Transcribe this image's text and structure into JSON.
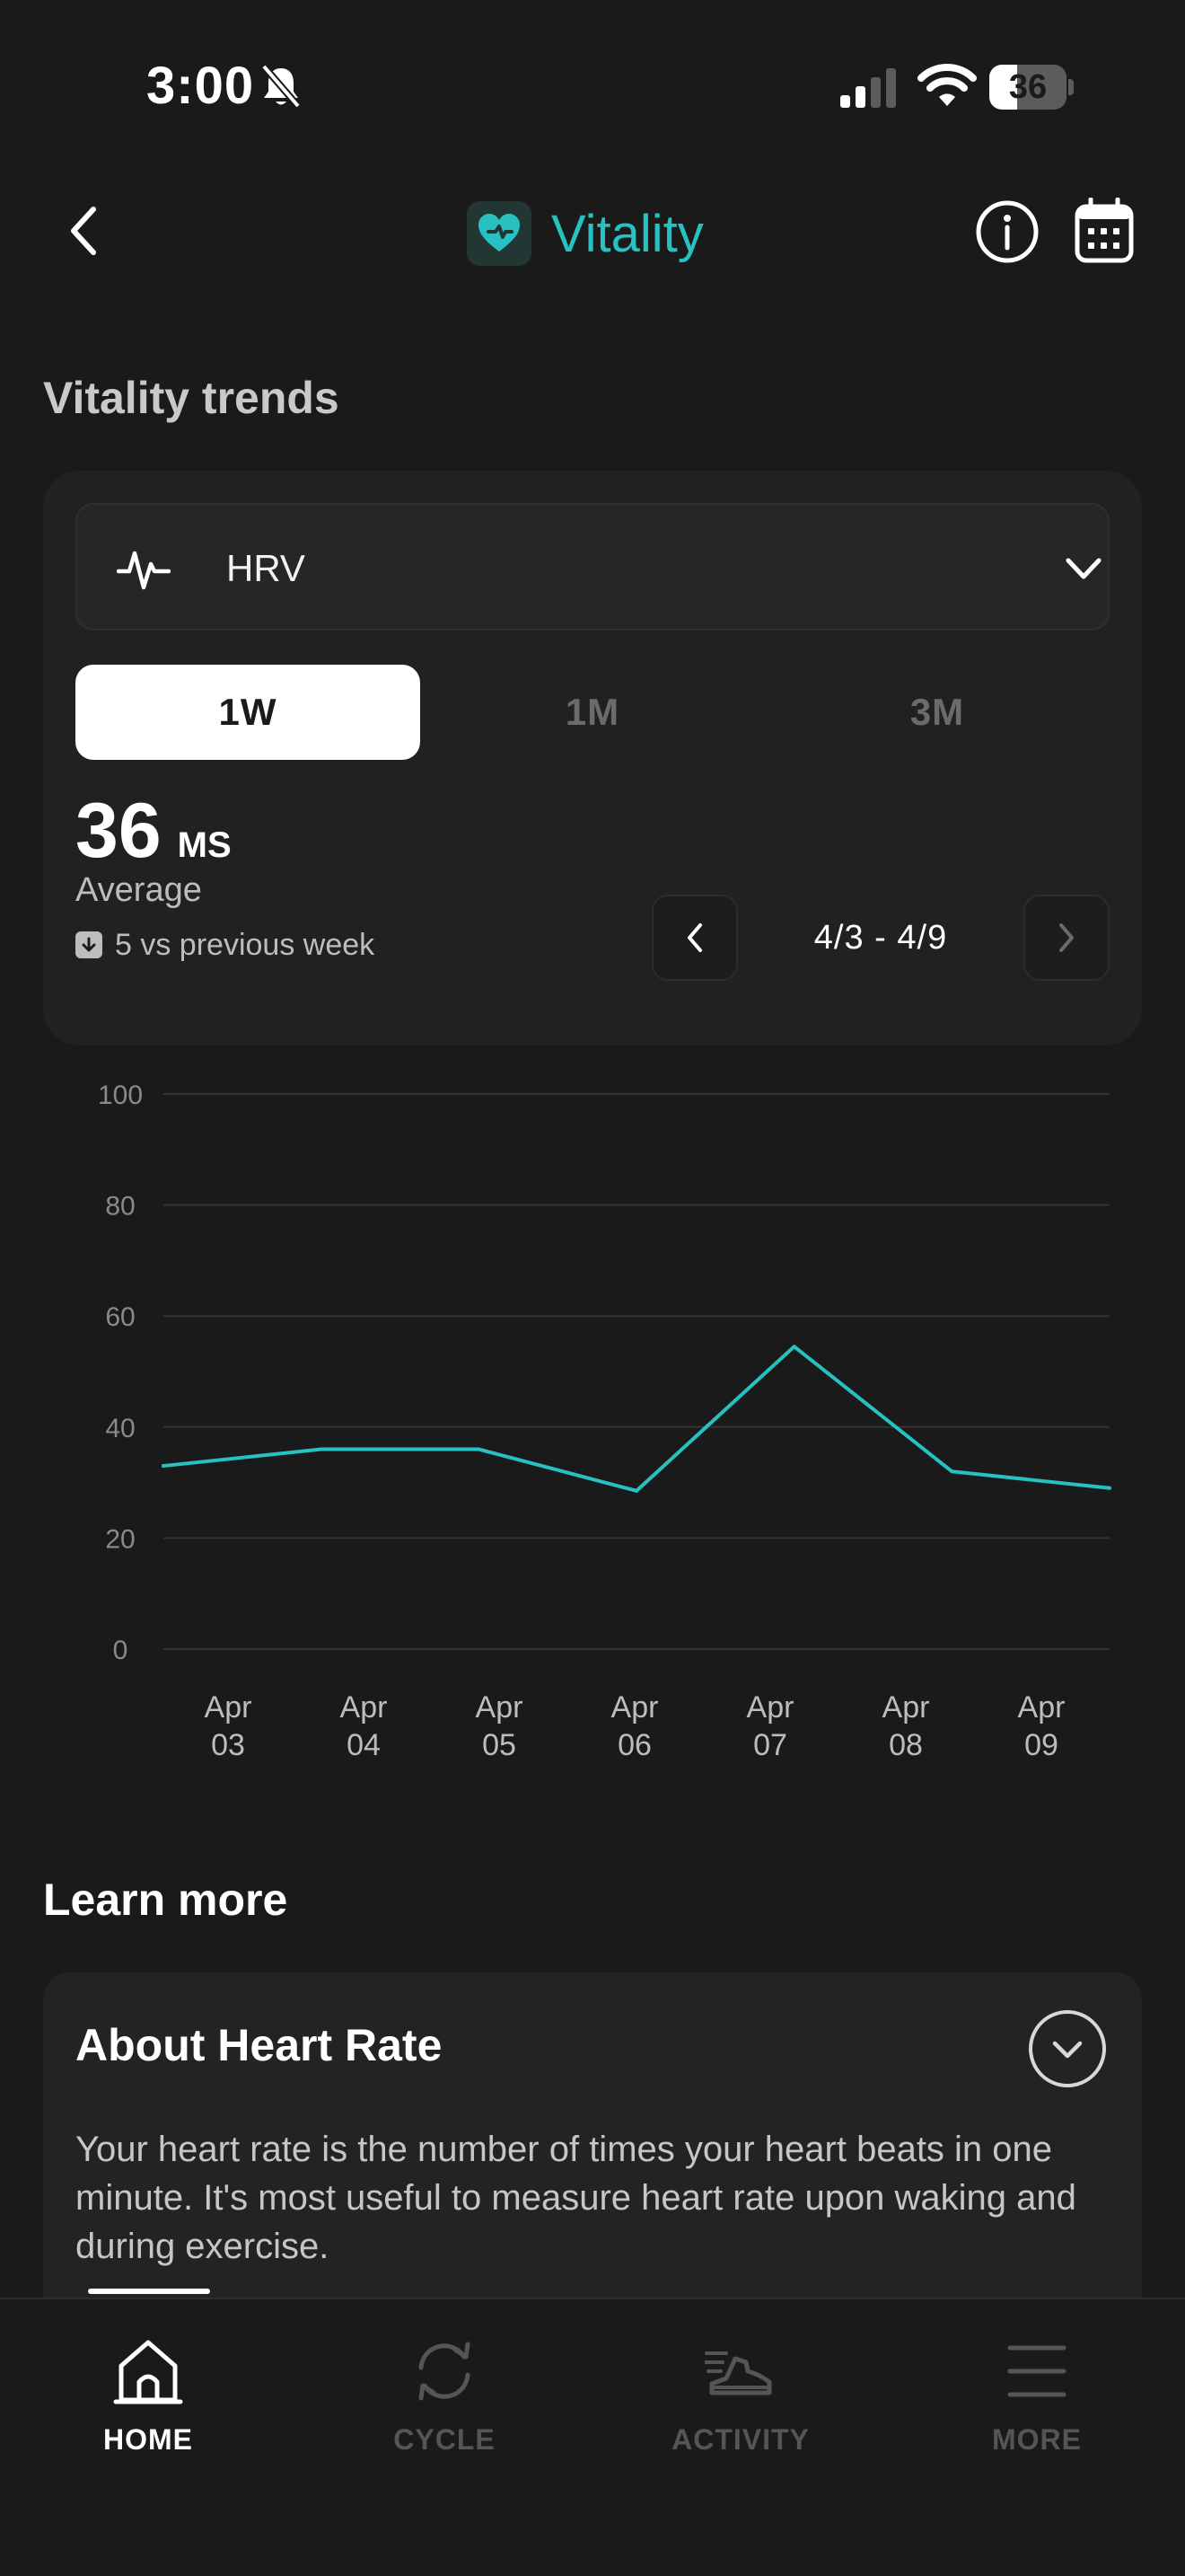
{
  "status_bar": {
    "time": "3:00",
    "battery": "36",
    "battery_level": 0.36
  },
  "header": {
    "title": "Vitality",
    "accent_color": "#27c1c1"
  },
  "trends": {
    "section_title": "Vitality trends",
    "metric": "HRV",
    "ranges": [
      "1W",
      "1M",
      "3M"
    ],
    "selected_range": "1W",
    "average_value": "36",
    "average_unit": "MS",
    "average_label": "Average",
    "change_text": "5 vs previous week",
    "date_range": "4/3 - 4/9"
  },
  "chart_data": {
    "type": "line",
    "categories": [
      "Apr 03",
      "Apr 04",
      "Apr 05",
      "Apr 06",
      "Apr 07",
      "Apr 08",
      "Apr 09"
    ],
    "x_labels": [
      [
        "Apr",
        "03"
      ],
      [
        "Apr",
        "04"
      ],
      [
        "Apr",
        "05"
      ],
      [
        "Apr",
        "06"
      ],
      [
        "Apr",
        "07"
      ],
      [
        "Apr",
        "08"
      ],
      [
        "Apr",
        "09"
      ]
    ],
    "series": [
      {
        "values": [
          33,
          36,
          36,
          28.5,
          54.5,
          32,
          29
        ]
      }
    ],
    "ylim": [
      0,
      100
    ],
    "yticks": [
      0,
      20,
      40,
      60,
      80,
      100
    ],
    "grid": true,
    "line_color": "#27c1c1"
  },
  "learn_more": {
    "section_title": "Learn more",
    "card_title": "About Heart Rate",
    "card_text": "Your heart rate is the number of times your heart beats in one minute. It's most useful to measure heart rate upon waking and during exercise."
  },
  "tab_bar": {
    "items": [
      {
        "label": "HOME",
        "icon": "home-icon"
      },
      {
        "label": "CYCLE",
        "icon": "cycle-icon"
      },
      {
        "label": "ACTIVITY",
        "icon": "shoe-icon"
      },
      {
        "label": "MORE",
        "icon": "menu-icon"
      }
    ],
    "active": "HOME"
  }
}
